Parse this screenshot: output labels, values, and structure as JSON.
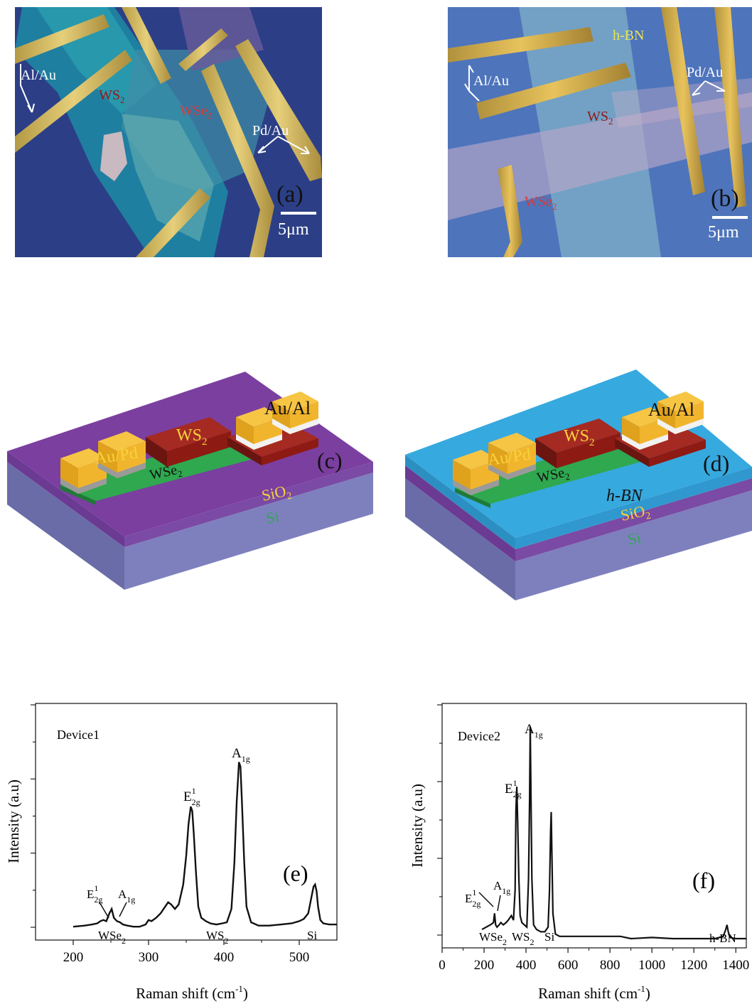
{
  "panel_a": {
    "letter": "(a)",
    "label_alau": "Al/Au",
    "label_ws2": "WS",
    "label_wse2": "WSe",
    "label_pdau": "Pd/Au",
    "scale": "5μm",
    "sub2": "2"
  },
  "panel_b": {
    "letter": "(b)",
    "label_hbn": "h-BN",
    "label_alau": "Al/Au",
    "label_pdau": "Pd/Au",
    "label_ws2": "WS",
    "label_wse2": "WSe",
    "scale": "5μm",
    "sub2": "2"
  },
  "panel_c": {
    "letter": "(c)",
    "label_ws2": "WS",
    "label_aupd": "Au/Pd",
    "label_aual": "Au/Al",
    "label_wse2": "WSe",
    "label_sio2": "SiO",
    "label_si": "Si",
    "sub2": "2"
  },
  "panel_d": {
    "letter": "(d)",
    "label_ws2": "WS",
    "label_aupd": "Au/Pd",
    "label_aual": "Au/Al",
    "label_wse2": "WSe",
    "label_hbn": "h-BN",
    "label_sio2": "SiO",
    "label_si": "Si",
    "sub2": "2"
  },
  "colors": {
    "substrate_si": "#7a7cb8",
    "sio2": "#7b3fa0",
    "hbn": "#36a9df",
    "ws2": "#8e1a14",
    "wse2": "#2fa84f",
    "gold": "#f7b82f",
    "optical_bg": "#33448a"
  },
  "chart_data": [
    {
      "type": "line",
      "panel": "(e)",
      "annotation": "Device1",
      "xlabel": "Raman shift (cm",
      "xlabel_sup": "-1",
      "xlabel_tail": ")",
      "ylabel": "Intensity (a.u)",
      "xlim": [
        150,
        550
      ],
      "x_ticks": [
        200,
        300,
        400,
        500
      ],
      "ylim": [
        0,
        1
      ],
      "x": [
        200,
        215,
        225,
        232,
        236,
        240,
        244,
        248,
        251,
        254,
        258,
        262,
        266,
        272,
        280,
        288,
        296,
        300,
        304,
        310,
        316,
        322,
        326,
        330,
        335,
        340,
        346,
        350,
        353,
        356,
        358,
        360,
        363,
        366,
        370,
        376,
        382,
        390,
        398,
        404,
        410,
        414,
        417,
        420,
        422,
        424,
        427,
        430,
        436,
        446,
        460,
        476,
        490,
        500,
        506,
        512,
        516,
        519,
        521,
        523,
        525,
        528,
        532,
        540,
        550
      ],
      "y": [
        0.06,
        0.065,
        0.07,
        0.075,
        0.085,
        0.09,
        0.085,
        0.12,
        0.14,
        0.1,
        0.085,
        0.08,
        0.07,
        0.065,
        0.06,
        0.06,
        0.07,
        0.09,
        0.085,
        0.1,
        0.12,
        0.15,
        0.17,
        0.16,
        0.14,
        0.16,
        0.25,
        0.38,
        0.52,
        0.6,
        0.58,
        0.48,
        0.3,
        0.15,
        0.1,
        0.085,
        0.075,
        0.07,
        0.075,
        0.08,
        0.14,
        0.35,
        0.62,
        0.8,
        0.78,
        0.62,
        0.35,
        0.15,
        0.08,
        0.065,
        0.065,
        0.07,
        0.075,
        0.085,
        0.095,
        0.12,
        0.19,
        0.24,
        0.25,
        0.22,
        0.15,
        0.09,
        0.075,
        0.07,
        0.07
      ],
      "annotations": [
        {
          "text": "E",
          "sup": "1",
          "sub": "2g",
          "x": 355,
          "y": 0.62
        },
        {
          "text": "A",
          "sub": "1g",
          "x": 420,
          "y": 0.82
        },
        {
          "text": "E",
          "sup": "1",
          "sub": "2g",
          "x": 248,
          "y": 0.17
        },
        {
          "text": "A",
          "sub": "1g",
          "x": 262,
          "y": 0.17
        },
        {
          "text": "WSe",
          "sub": "2",
          "x": 252,
          "y": 0.02
        },
        {
          "text": "WS",
          "sub": "2",
          "x": 388,
          "y": 0.02
        },
        {
          "text": "Si",
          "x": 520,
          "y": 0.02
        },
        {
          "text": "(e)",
          "x": 500,
          "y": 0.25
        }
      ]
    },
    {
      "type": "line",
      "panel": "(f)",
      "annotation": "Device2",
      "xlabel": "Raman shift (cm",
      "xlabel_sup": "-1",
      "xlabel_tail": ")",
      "ylabel": "Intensity (a.u)",
      "xlim": [
        0,
        1450
      ],
      "x_ticks": [
        0,
        200,
        400,
        600,
        800,
        1000,
        1200,
        1400
      ],
      "ylim": [
        0,
        1
      ],
      "x": [
        190,
        210,
        230,
        245,
        250,
        255,
        262,
        272,
        280,
        292,
        305,
        315,
        330,
        340,
        348,
        352,
        356,
        360,
        366,
        372,
        380,
        392,
        404,
        412,
        417,
        420,
        423,
        428,
        436,
        450,
        470,
        490,
        505,
        512,
        517,
        520,
        523,
        528,
        540,
        560,
        600,
        650,
        700,
        750,
        800,
        850,
        900,
        1000,
        1100,
        1200,
        1300,
        1340,
        1352,
        1358,
        1364,
        1372,
        1400,
        1450
      ],
      "y": [
        0.08,
        0.09,
        0.1,
        0.11,
        0.15,
        0.1,
        0.09,
        0.1,
        0.11,
        0.1,
        0.11,
        0.12,
        0.14,
        0.12,
        0.25,
        0.6,
        0.7,
        0.55,
        0.3,
        0.14,
        0.11,
        0.1,
        0.09,
        0.3,
        0.65,
        0.96,
        0.7,
        0.3,
        0.1,
        0.08,
        0.07,
        0.07,
        0.09,
        0.25,
        0.5,
        0.59,
        0.42,
        0.15,
        0.06,
        0.05,
        0.05,
        0.05,
        0.05,
        0.05,
        0.05,
        0.05,
        0.04,
        0.045,
        0.04,
        0.04,
        0.04,
        0.05,
        0.08,
        0.1,
        0.07,
        0.045,
        0.04,
        0.04
      ],
      "annotations": [
        {
          "text": "A",
          "sub": "1g",
          "x": 420,
          "y": 0.98
        },
        {
          "text": "E",
          "sup": "1",
          "sub": "2g",
          "x": 355,
          "y": 0.72
        },
        {
          "text": "E",
          "sup": "1",
          "sub": "2g",
          "x": 250,
          "y": 0.18
        },
        {
          "text": "A",
          "sub": "1g",
          "x": 290,
          "y": 0.2
        },
        {
          "text": "WSe",
          "sub": "2",
          "x": 255,
          "y": 0.02
        },
        {
          "text": "WS",
          "sub": "2",
          "x": 385,
          "y": 0.02
        },
        {
          "text": "Si",
          "x": 520,
          "y": 0.02
        },
        {
          "text": "h-BN",
          "x": 1360,
          "y": 0.02
        },
        {
          "text": "(f)",
          "x": 1250,
          "y": 0.25
        }
      ]
    }
  ]
}
